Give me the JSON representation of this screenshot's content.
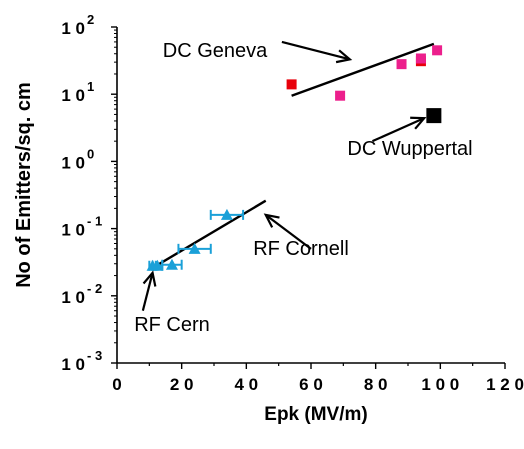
{
  "chart_data": {
    "type": "scatter",
    "title": "",
    "xlabel": "Epk   (MV/m)",
    "ylabel": "No of Emitters/sq. cm",
    "xlim": [
      0,
      120
    ],
    "ylim": [
      0.001,
      100
    ],
    "y_scale": "log",
    "x_ticks": [
      0,
      20,
      40,
      60,
      80,
      100,
      120
    ],
    "x_tick_labels": [
      "0",
      "2 0",
      "4 0",
      "6 0",
      "8 0",
      "1 0 0",
      "1 2 0"
    ],
    "y_ticks": [
      {
        "value": 0.001,
        "base": "1 0",
        "exp": "- 3"
      },
      {
        "value": 0.01,
        "base": "1 0",
        "exp": "- 2"
      },
      {
        "value": 0.1,
        "base": "1 0",
        "exp": "- 1"
      },
      {
        "value": 1,
        "base": "1 0",
        "exp": "0"
      },
      {
        "value": 10,
        "base": "1 0",
        "exp": "1"
      },
      {
        "value": 100,
        "base": "1 0",
        "exp": "2"
      }
    ],
    "grid": false,
    "series": [
      {
        "color": "#e8000b",
        "marker": "square",
        "points": [
          {
            "x": 54,
            "y": 14
          },
          {
            "x": 94,
            "y": 31
          }
        ]
      },
      {
        "color": "#ec1f8c",
        "marker": "square",
        "points": [
          {
            "x": 69,
            "y": 9.5
          },
          {
            "x": 88,
            "y": 28
          },
          {
            "x": 94,
            "y": 34
          },
          {
            "x": 99,
            "y": 45
          }
        ]
      },
      {
        "color": "#000000",
        "marker": "square-large",
        "points": [
          {
            "x": 98,
            "y": 4.8
          }
        ]
      },
      {
        "color": "#1aa0d8",
        "marker": "triangle",
        "points": [
          {
            "x": 11,
            "y": 0.028,
            "xerr": 1
          },
          {
            "x": 12.5,
            "y": 0.028,
            "xerr": 1.5
          },
          {
            "x": 17,
            "y": 0.029,
            "xerr": 3
          },
          {
            "x": 24,
            "y": 0.05,
            "xerr": 5
          },
          {
            "x": 34,
            "y": 0.16,
            "xerr": 5
          }
        ]
      }
    ],
    "fit_lines": [
      {
        "x": [
          54,
          98
        ],
        "y": [
          9.5,
          56
        ]
      },
      {
        "x": [
          11,
          46
        ],
        "y": [
          0.026,
          0.26
        ]
      }
    ],
    "annotations": [
      {
        "text": "DC Geneva",
        "arrow_from": {
          "x": 51,
          "y": 60
        },
        "arrow_to": {
          "x": 72,
          "y": 33
        }
      },
      {
        "text": "DC  Wuppertal",
        "arrow_from": {
          "x": 79,
          "y": 2.0
        },
        "arrow_to": {
          "x": 95,
          "y": 4.4
        }
      },
      {
        "text": "RF  Cornell",
        "arrow_from": {
          "x": 60,
          "y": 0.05
        },
        "arrow_to": {
          "x": 46,
          "y": 0.16
        }
      },
      {
        "text": "RF Cern",
        "arrow_from": {
          "x": 8,
          "y": 0.006
        },
        "arrow_to": {
          "x": 11,
          "y": 0.022
        }
      }
    ]
  }
}
